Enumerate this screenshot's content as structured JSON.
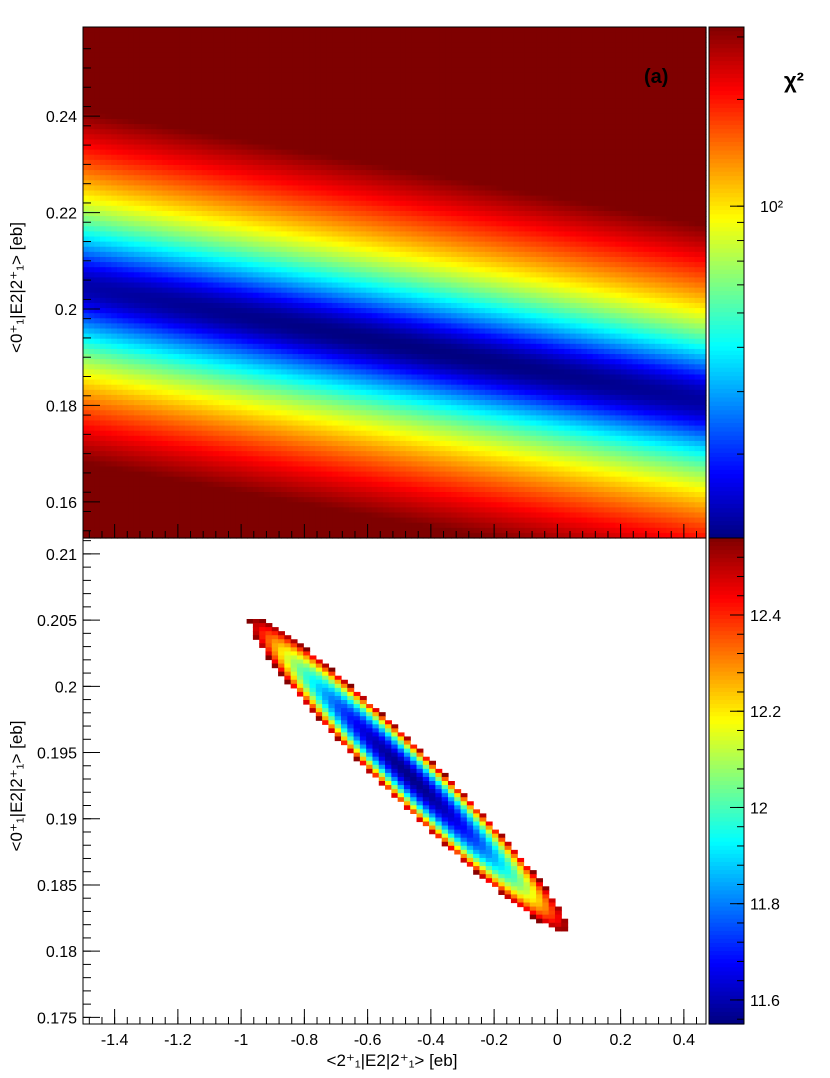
{
  "chart_data": [
    {
      "type": "heatmap",
      "panel": "top",
      "tag": "(a)",
      "xlabel": "",
      "ylabel": "<0⁺₁|E2|2⁺₁> [eb]",
      "xlim": [
        -1.5,
        0.47
      ],
      "ylim": [
        0.1525,
        0.2585
      ],
      "x_ticks": [],
      "y_ticks": [
        0.16,
        0.18,
        0.2,
        0.22,
        0.24
      ],
      "y_tick_labels": [
        "0.16",
        "0.18",
        "0.2",
        "0.22",
        "0.24"
      ],
      "colorbar": {
        "title": "χ²",
        "scale": "log",
        "range": [
          11.6,
          320
        ],
        "ticks": [
          100
        ],
        "tick_labels": [
          "10²"
        ]
      },
      "minimum": {
        "x": -0.45,
        "y": 0.192,
        "chi2": 11.6
      },
      "valley_direction": "y decreases as x increases",
      "colormap": [
        "#00007f",
        "#0000ff",
        "#0080ff",
        "#00ffff",
        "#80ff80",
        "#ffff00",
        "#ff8000",
        "#ff0000",
        "#7f0000"
      ]
    },
    {
      "type": "heatmap",
      "panel": "bottom",
      "xlabel": "<2⁺₁|E2|2⁺₁> [eb]",
      "ylabel": "<0⁺₁|E2|2⁺₁> [eb]",
      "xlim": [
        -1.5,
        0.47
      ],
      "ylim": [
        0.1745,
        0.2112
      ],
      "x_ticks": [
        -1.4,
        -1.2,
        -1,
        -0.8,
        -0.6,
        -0.4,
        -0.2,
        0,
        0.2,
        0.4
      ],
      "x_tick_labels": [
        "-1.4",
        "-1.2",
        "-1",
        "-0.8",
        "-0.6",
        "-0.4",
        "-0.2",
        "0",
        "0.2",
        "0.4"
      ],
      "y_ticks": [
        0.175,
        0.18,
        0.185,
        0.19,
        0.195,
        0.2,
        0.205,
        0.21
      ],
      "y_tick_labels": [
        "0.175",
        "0.18",
        "0.185",
        "0.19",
        "0.195",
        "0.2",
        "0.205",
        "0.21"
      ],
      "colorbar": {
        "scale": "linear",
        "range": [
          11.55,
          12.56
        ],
        "ticks": [
          11.6,
          11.8,
          12,
          12.2,
          12.4
        ],
        "tick_labels": [
          "11.6",
          "11.8",
          "12",
          "12.2",
          "12.4"
        ]
      },
      "region": {
        "shape": "ellipse",
        "center": {
          "x": -0.47,
          "y": 0.1933
        },
        "end_upper_left": {
          "x": -0.96,
          "y": 0.2052
        },
        "end_lower_right": {
          "x": 0.02,
          "y": 0.1815
        },
        "semi_minor_x": 0.115,
        "chi2_min": 11.56,
        "chi2_max": 12.56
      },
      "colormap": [
        "#00007f",
        "#0000ff",
        "#0080ff",
        "#00ffff",
        "#80ff80",
        "#ffff00",
        "#ff8000",
        "#ff0000",
        "#7f0000"
      ]
    }
  ]
}
